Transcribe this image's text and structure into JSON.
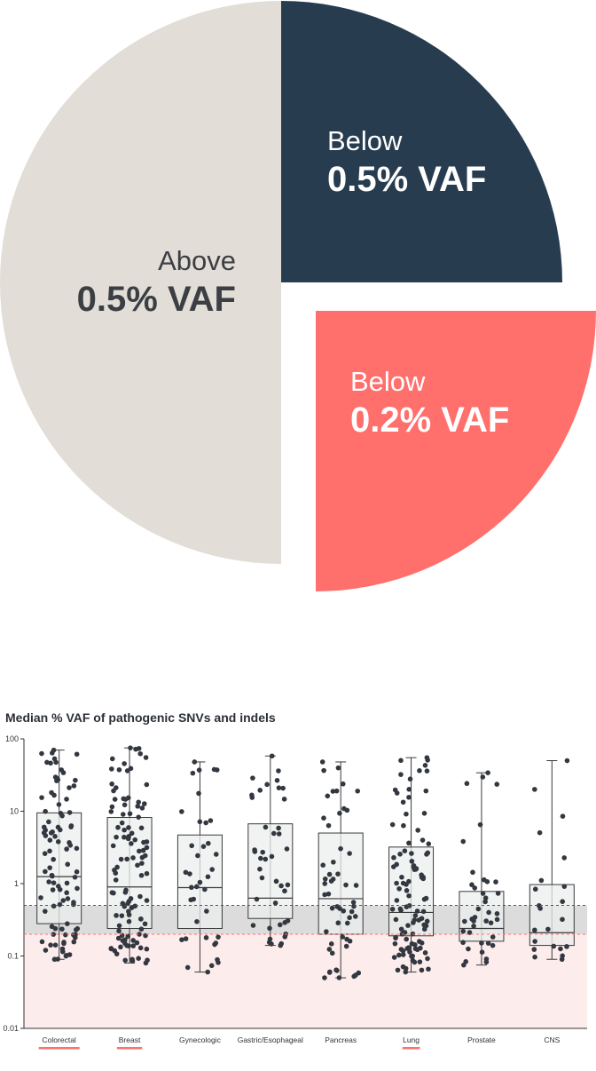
{
  "pie": {
    "slices": [
      {
        "label_line1": "Above",
        "label_line2": "0.5% VAF",
        "share": 0.5,
        "color": "#e2ddd6",
        "text_color": "#3b3f44"
      },
      {
        "label_line1": "Below",
        "label_line2": "0.5% VAF",
        "share": 0.25,
        "color": "#283c50",
        "text_color": "#ffffff"
      },
      {
        "label_line1": "Below",
        "label_line2": "0.2% VAF",
        "share": 0.25,
        "color": "#ff6f6c",
        "text_color": "#ffffff",
        "exploded": true
      }
    ]
  },
  "chart_data": {
    "type": "box",
    "title": "Median % VAF of pathogenic SNVs and indels",
    "y_scale": "log",
    "ylim": [
      0.01,
      100
    ],
    "y_ticks": [
      "0.01",
      "0.1",
      "1",
      "10",
      "100"
    ],
    "reference_lines": [
      {
        "value": 0.5,
        "style": "dashed",
        "color": "#555555"
      },
      {
        "value": 0.2,
        "style": "dashed",
        "color": "#ff6f6c"
      }
    ],
    "shaded_bands": [
      {
        "from": 0.2,
        "to": 0.5,
        "color": "#dcdcdc"
      },
      {
        "from": 0.01,
        "to": 0.2,
        "color": "#fdecec"
      }
    ],
    "categories": [
      {
        "name": "Colorectal",
        "highlight": true,
        "min": 0.09,
        "q1": 0.28,
        "median": 1.25,
        "q3": 9.5,
        "max": 70,
        "n_points": 95
      },
      {
        "name": "Breast",
        "highlight": true,
        "min": 0.08,
        "q1": 0.24,
        "median": 0.9,
        "q3": 8.2,
        "max": 75,
        "n_points": 110
      },
      {
        "name": "Gynecologic",
        "highlight": false,
        "min": 0.06,
        "q1": 0.24,
        "median": 0.88,
        "q3": 4.7,
        "max": 48,
        "n_points": 38
      },
      {
        "name": "Gastric/Esophageal",
        "highlight": false,
        "min": 0.14,
        "q1": 0.33,
        "median": 0.63,
        "q3": 6.7,
        "max": 58,
        "n_points": 42
      },
      {
        "name": "Pancreas",
        "highlight": false,
        "min": 0.05,
        "q1": 0.2,
        "median": 0.62,
        "q3": 5.0,
        "max": 48,
        "n_points": 55
      },
      {
        "name": "Lung",
        "highlight": true,
        "min": 0.06,
        "q1": 0.19,
        "median": 0.4,
        "q3": 3.2,
        "max": 55,
        "n_points": 105
      },
      {
        "name": "Prostate",
        "highlight": false,
        "min": 0.075,
        "q1": 0.16,
        "median": 0.24,
        "q3": 0.78,
        "max": 34,
        "n_points": 40
      },
      {
        "name": "CNS",
        "highlight": false,
        "min": 0.09,
        "q1": 0.14,
        "median": 0.21,
        "q3": 0.97,
        "max": 50,
        "n_points": 22
      }
    ],
    "colors": {
      "box_fill": "#eceeed",
      "box_stroke": "#3a3a3a",
      "dots": "#333840",
      "highlight_underline": "#ff6f6c"
    }
  }
}
